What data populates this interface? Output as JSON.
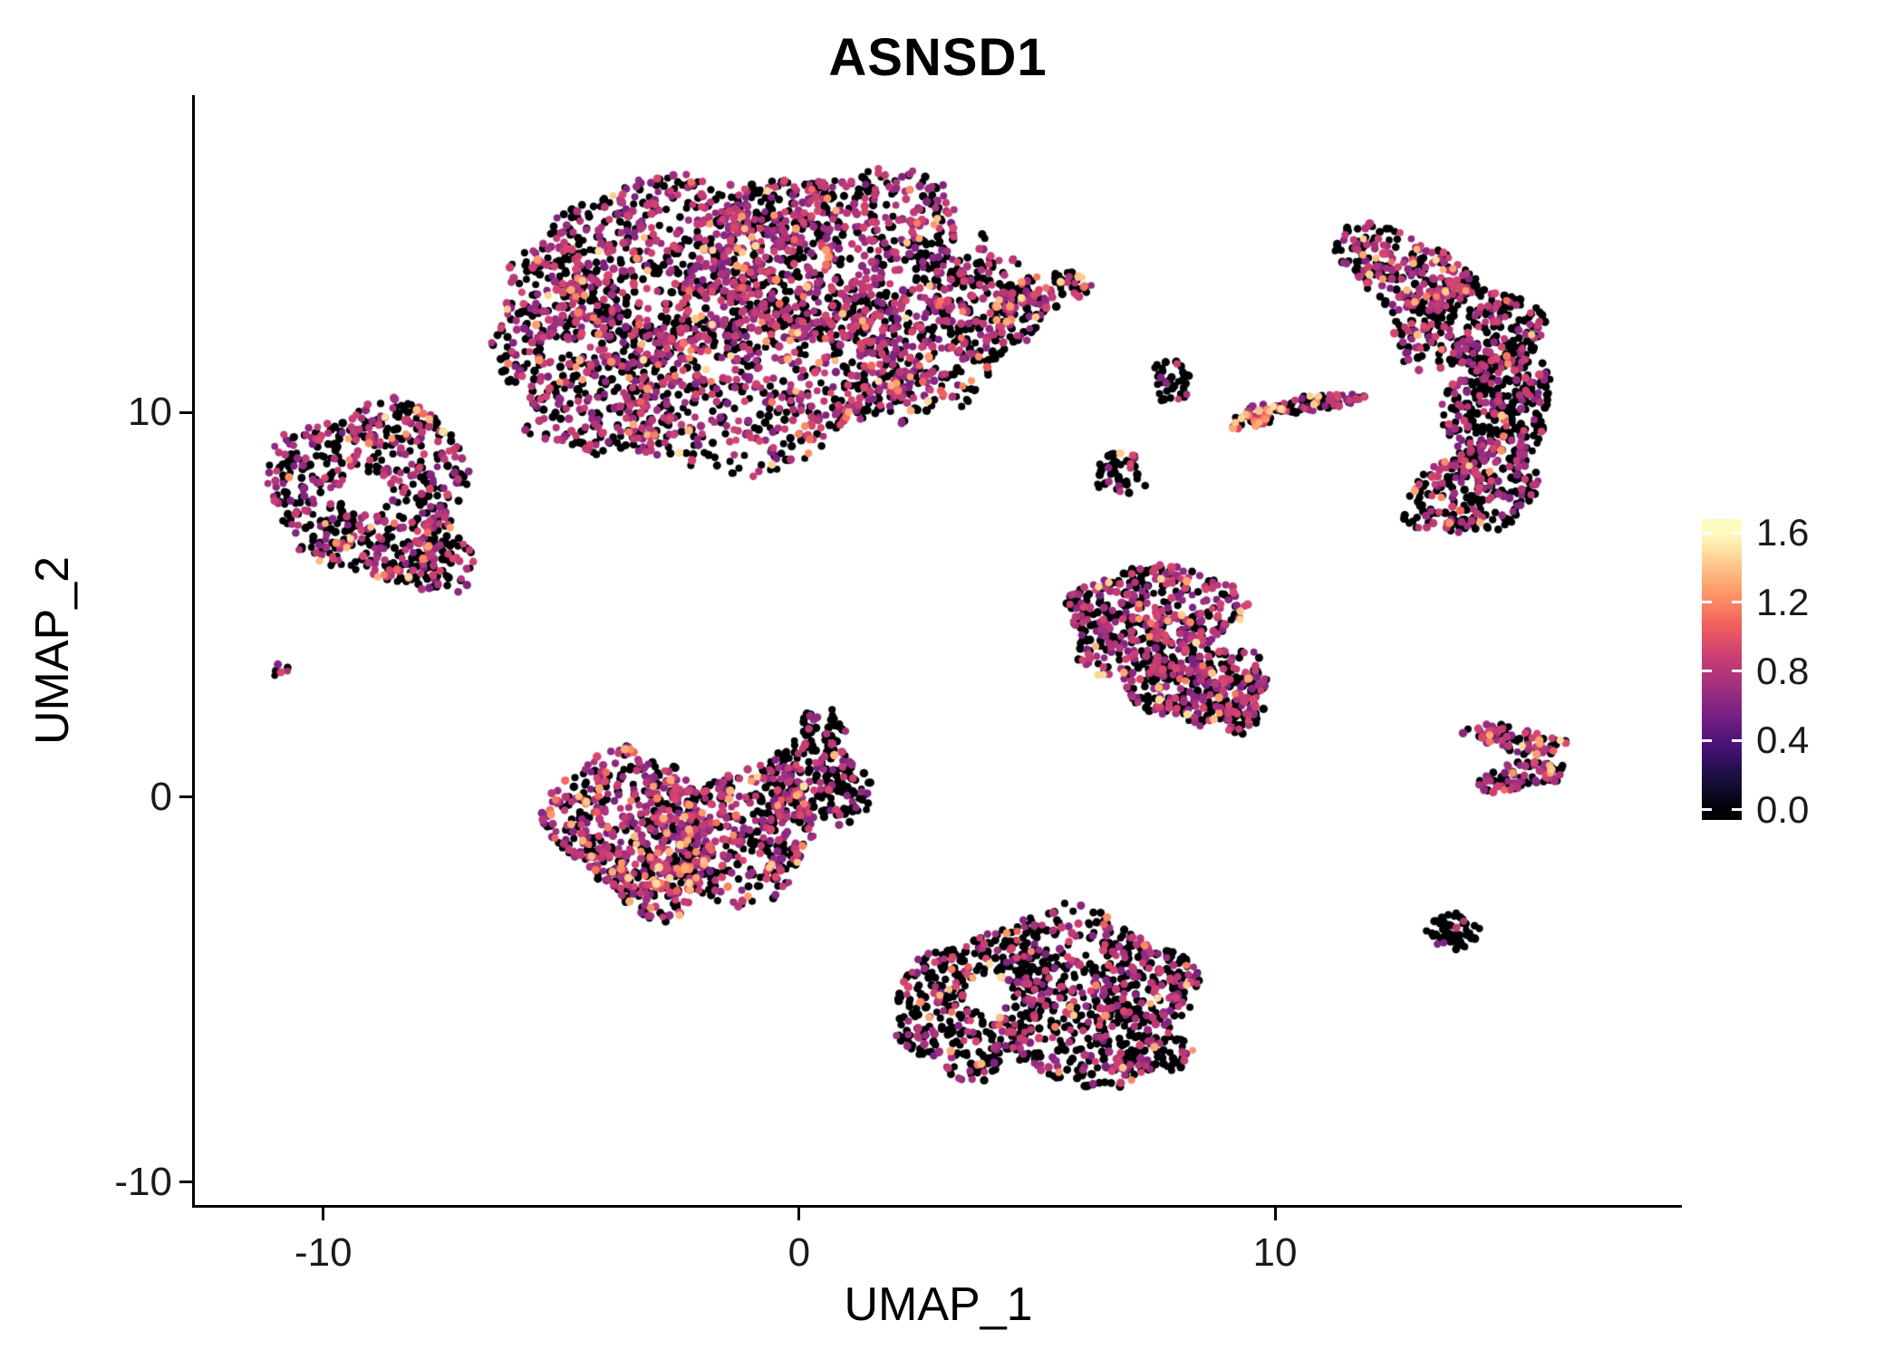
{
  "title": "ASNSD1",
  "axes": {
    "x": {
      "label": "UMAP_1",
      "ticks": [
        "-10",
        "0",
        "10"
      ],
      "tick_values": [
        -10,
        0,
        10
      ]
    },
    "y": {
      "label": "UMAP_2",
      "ticks": [
        "10",
        "0",
        "-10"
      ],
      "tick_values": [
        10,
        0,
        -10
      ]
    }
  },
  "colorbar": {
    "tick_labels": [
      "1.6",
      "1.2",
      "0.8",
      "0.4",
      "0.0"
    ],
    "tick_values": [
      1.6,
      1.2,
      0.8,
      0.4,
      0.0
    ],
    "domain": [
      -0.06,
      1.68
    ]
  },
  "colormap": {
    "name": "magma",
    "stops": [
      [
        0.0,
        "#000004"
      ],
      [
        0.11,
        "#180F3E"
      ],
      [
        0.22,
        "#451077"
      ],
      [
        0.33,
        "#721F81"
      ],
      [
        0.44,
        "#9F2F7F"
      ],
      [
        0.56,
        "#CD4071"
      ],
      [
        0.67,
        "#F1605D"
      ],
      [
        0.78,
        "#FD9567"
      ],
      [
        0.89,
        "#FECA8D"
      ],
      [
        1.0,
        "#FCFDBF"
      ]
    ]
  },
  "chart_data": {
    "type": "scatter",
    "representation": "cluster-density-model",
    "gene": "ASNSD1",
    "title": "ASNSD1",
    "xlabel": "UMAP_1",
    "ylabel": "UMAP_2",
    "xlim": [
      -12.7,
      18.55
    ],
    "ylim": [
      -10.6,
      18.25
    ],
    "color_scale": {
      "min": 0.0,
      "max": 1.6,
      "palette": "magma"
    },
    "point_radius_px": 4.2,
    "seed": 7,
    "clusters": [
      {
        "name": "top-center-a",
        "cx": -2.8,
        "cy": 13.8,
        "rx": 2.6,
        "ry": 2.5,
        "n": 650,
        "expr": {
          "zero": 0.48,
          "mid": 0.48,
          "high": 0.04
        }
      },
      {
        "name": "top-center-b",
        "cx": 0.6,
        "cy": 14.2,
        "rx": 2.6,
        "ry": 2.3,
        "n": 750,
        "expr": {
          "zero": 0.48,
          "mid": 0.48,
          "high": 0.04
        }
      },
      {
        "name": "top-center-c",
        "cx": -0.9,
        "cy": 10.7,
        "rx": 3.2,
        "ry": 2.1,
        "n": 650,
        "expr": {
          "zero": 0.46,
          "mid": 0.48,
          "high": 0.06
        }
      },
      {
        "name": "top-center-left",
        "cx": -4.9,
        "cy": 12.2,
        "rx": 1.7,
        "ry": 1.9,
        "n": 280,
        "expr": {
          "zero": 0.5,
          "mid": 0.47,
          "high": 0.03
        }
      },
      {
        "name": "top-center-lowerleft",
        "cx": -4.2,
        "cy": 9.9,
        "rx": 1.4,
        "ry": 1.1,
        "n": 150,
        "expr": {
          "zero": 0.5,
          "mid": 0.47,
          "high": 0.03
        }
      },
      {
        "name": "top-center-rightbulge",
        "cx": 2.6,
        "cy": 11.4,
        "rx": 1.4,
        "ry": 1.7,
        "n": 210,
        "expr": {
          "zero": 0.48,
          "mid": 0.45,
          "high": 0.07
        }
      },
      {
        "name": "top-right-wedge",
        "cx": 3.8,
        "cy": 12.6,
        "rx": 1.2,
        "ry": 1.4,
        "n": 160,
        "expr": {
          "zero": 0.5,
          "mid": 0.46,
          "high": 0.04
        }
      },
      {
        "name": "top-arm",
        "cx": 5.0,
        "cy": 13.0,
        "rx": 1.3,
        "ry": 0.45,
        "rot": 25,
        "n": 110,
        "expr": {
          "zero": 0.42,
          "mid": 0.42,
          "high": 0.16
        }
      },
      {
        "name": "arm-scatter",
        "cx": 3.6,
        "cy": 13.8,
        "rx": 0.8,
        "ry": 0.8,
        "n": 30,
        "expr": {
          "zero": 0.6,
          "mid": 0.4,
          "high": 0.0
        }
      },
      {
        "name": "topright-banana-1",
        "cx": 12.7,
        "cy": 13.7,
        "rx": 1.6,
        "ry": 0.9,
        "rot": -25,
        "n": 220,
        "expr": {
          "zero": 0.52,
          "mid": 0.42,
          "high": 0.06
        }
      },
      {
        "name": "topright-banana-2",
        "cx": 14.0,
        "cy": 12.2,
        "rx": 1.5,
        "ry": 1.3,
        "n": 300,
        "expr": {
          "zero": 0.62,
          "mid": 0.36,
          "high": 0.02
        }
      },
      {
        "name": "topright-banana-3",
        "cx": 14.7,
        "cy": 10.2,
        "rx": 1.15,
        "ry": 1.5,
        "n": 300,
        "expr": {
          "zero": 0.66,
          "mid": 0.32,
          "high": 0.02
        }
      },
      {
        "name": "topright-banana-4",
        "cx": 14.2,
        "cy": 8.0,
        "rx": 1.5,
        "ry": 1.1,
        "rot": 20,
        "n": 260,
        "expr": {
          "zero": 0.62,
          "mid": 0.35,
          "high": 0.03
        }
      },
      {
        "name": "streak-left",
        "cx": 9.6,
        "cy": 9.9,
        "rx": 0.55,
        "ry": 0.28,
        "rot": 15,
        "n": 55,
        "expr": {
          "zero": 0.3,
          "mid": 0.35,
          "high": 0.35
        }
      },
      {
        "name": "streak-right",
        "cx": 10.9,
        "cy": 10.25,
        "rx": 1.0,
        "ry": 0.22,
        "rot": 12,
        "n": 85,
        "expr": {
          "zero": 0.55,
          "mid": 0.42,
          "high": 0.03
        }
      },
      {
        "name": "tiny-upper-mid",
        "cx": 7.85,
        "cy": 10.8,
        "rx": 0.5,
        "ry": 0.55,
        "n": 38,
        "expr": {
          "zero": 0.85,
          "mid": 0.15,
          "high": 0
        }
      },
      {
        "name": "small-mid",
        "cx": 6.75,
        "cy": 8.4,
        "rx": 0.5,
        "ry": 0.6,
        "n": 45,
        "expr": {
          "zero": 0.8,
          "mid": 0.18,
          "high": 0.02
        }
      },
      {
        "name": "left-ring",
        "cx": -9.0,
        "cy": 8.0,
        "rx": 1.9,
        "ry": 2.5,
        "n": 560,
        "holes": [
          {
            "cx": -9.1,
            "cy": 7.9,
            "r": 0.55
          }
        ],
        "expr": {
          "zero": 0.52,
          "mid": 0.44,
          "high": 0.04
        }
      },
      {
        "name": "left-ring-bump",
        "cx": -7.6,
        "cy": 6.2,
        "rx": 0.8,
        "ry": 0.9,
        "n": 90,
        "expr": {
          "zero": 0.55,
          "mid": 0.42,
          "high": 0.03
        }
      },
      {
        "name": "tiny-left-pair",
        "cx": -10.95,
        "cy": 3.35,
        "rx": 0.22,
        "ry": 0.18,
        "n": 6,
        "expr": {
          "zero": 0.5,
          "mid": 0.5,
          "high": 0
        }
      },
      {
        "name": "center-right-1",
        "cx": 7.4,
        "cy": 4.6,
        "rx": 1.9,
        "ry": 1.4,
        "n": 450,
        "expr": {
          "zero": 0.5,
          "mid": 0.46,
          "high": 0.04
        }
      },
      {
        "name": "center-right-2",
        "cx": 8.4,
        "cy": 2.9,
        "rx": 1.4,
        "ry": 1.0,
        "rot": 20,
        "n": 280,
        "expr": {
          "zero": 0.5,
          "mid": 0.47,
          "high": 0.03
        }
      },
      {
        "name": "center-right-tail",
        "cx": 9.3,
        "cy": 2.2,
        "rx": 0.5,
        "ry": 0.5,
        "n": 60,
        "expr": {
          "zero": 0.55,
          "mid": 0.45,
          "high": 0
        }
      },
      {
        "name": "left-mid-1",
        "cx": -3.6,
        "cy": -0.6,
        "rx": 1.7,
        "ry": 1.8,
        "n": 420,
        "expr": {
          "zero": 0.42,
          "mid": 0.45,
          "high": 0.13
        }
      },
      {
        "name": "left-mid-2",
        "cx": -1.4,
        "cy": -1.0,
        "rx": 1.9,
        "ry": 1.6,
        "n": 430,
        "expr": {
          "zero": 0.5,
          "mid": 0.44,
          "high": 0.06
        }
      },
      {
        "name": "left-mid-3",
        "cx": 0.3,
        "cy": 0.3,
        "rx": 1.3,
        "ry": 1.1,
        "n": 200,
        "expr": {
          "zero": 0.68,
          "mid": 0.3,
          "high": 0.02
        }
      },
      {
        "name": "left-mid-spur",
        "cx": 0.5,
        "cy": 1.7,
        "rx": 0.5,
        "ry": 0.6,
        "n": 45,
        "expr": {
          "zero": 0.8,
          "mid": 0.2,
          "high": 0
        }
      },
      {
        "name": "left-mid-bottom",
        "cx": -3.0,
        "cy": -2.3,
        "rx": 1.0,
        "ry": 0.8,
        "n": 120,
        "expr": {
          "zero": 0.45,
          "mid": 0.45,
          "high": 0.1
        }
      },
      {
        "name": "bottom-1",
        "cx": 3.6,
        "cy": -5.4,
        "rx": 1.5,
        "ry": 1.9,
        "n": 380,
        "holes": [
          {
            "cx": 3.95,
            "cy": -5.1,
            "r": 0.5
          }
        ],
        "expr": {
          "zero": 0.68,
          "mid": 0.26,
          "high": 0.06
        }
      },
      {
        "name": "bottom-2",
        "cx": 6.3,
        "cy": -4.4,
        "rx": 2.2,
        "ry": 1.3,
        "rot": -15,
        "n": 420,
        "expr": {
          "zero": 0.62,
          "mid": 0.34,
          "high": 0.04
        }
      },
      {
        "name": "bottom-3",
        "cx": 6.3,
        "cy": -6.5,
        "rx": 1.9,
        "ry": 1.0,
        "rot": -10,
        "n": 260,
        "expr": {
          "zero": 0.66,
          "mid": 0.32,
          "high": 0.02
        }
      },
      {
        "name": "bottom-right-dot",
        "cx": 13.75,
        "cy": -3.5,
        "rx": 0.55,
        "ry": 0.55,
        "n": 55,
        "expr": {
          "zero": 0.96,
          "mid": 0.04,
          "high": 0
        }
      },
      {
        "name": "right-chevron-top",
        "cx": 15.0,
        "cy": 1.5,
        "rx": 1.1,
        "ry": 0.35,
        "rot": -15,
        "n": 85,
        "expr": {
          "zero": 0.45,
          "mid": 0.45,
          "high": 0.1
        }
      },
      {
        "name": "right-chevron-bottom",
        "cx": 15.2,
        "cy": 0.55,
        "rx": 1.05,
        "ry": 0.33,
        "rot": 15,
        "n": 85,
        "expr": {
          "zero": 0.5,
          "mid": 0.45,
          "high": 0.05
        }
      }
    ]
  }
}
